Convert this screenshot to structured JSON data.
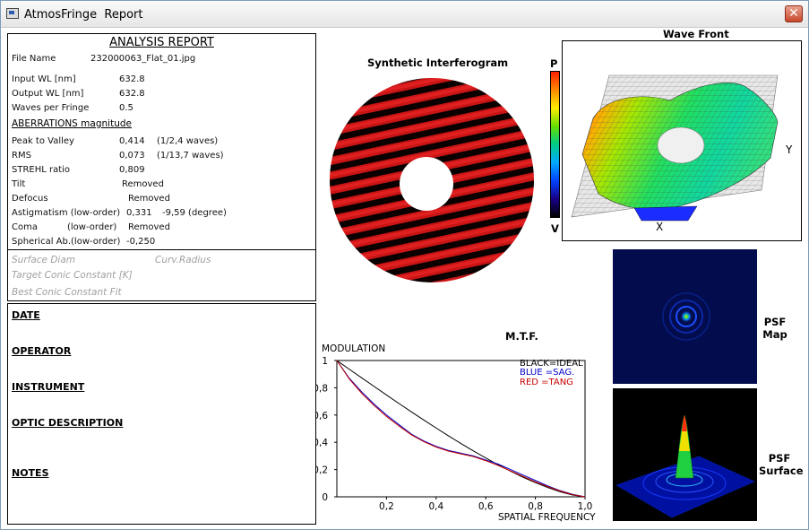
{
  "window": {
    "app_name": "AtmosFringe",
    "title": "Report",
    "close_label": "✕"
  },
  "report": {
    "heading": "ANALYSIS  REPORT",
    "file_name_label": "File Name",
    "file_name": "232000063_Flat_01.jpg",
    "input_wl_label": "Input  WL [nm]",
    "input_wl": "632.8",
    "output_wl_label": "Output WL [nm]",
    "output_wl": "632.8",
    "waves_per_fringe_label": "Waves per Fringe",
    "waves_per_fringe": "0.5",
    "aberrations_heading": "ABERRATIONS magnitude",
    "pv_label": "Peak to Valley",
    "pv_value": "0,414",
    "pv_waves": "(1/2,4 waves)",
    "rms_label": "RMS",
    "rms_value": "0,073",
    "rms_waves": "(1/13,7 waves)",
    "strehl_label": "STREHL ratio",
    "strehl_value": "0,809",
    "tilt_label": "Tilt",
    "tilt_value": "Removed",
    "defocus_label": "Defocus",
    "defocus_value": "Removed",
    "astig_label": "Astigmatism  (low-order)",
    "astig_value": "0,331",
    "astig_angle": "-9,59  (degree)",
    "coma_label": "Coma",
    "coma_order": "(low-order)",
    "coma_value": "Removed",
    "spherical_label": "Spherical Ab.(low-order)",
    "spherical_value": "-0,250",
    "surface_diam": "Surface Diam",
    "curv_radius": "Curv.Radius",
    "target_conic": "Target Conic Constant [K]",
    "best_conic": "Best Conic Constant Fit"
  },
  "info": {
    "date": "DATE",
    "operator": "OPERATOR",
    "instrument": "INSTRUMENT",
    "optic_description": "OPTIC DESCRIPTION",
    "notes": "NOTES"
  },
  "interferogram": {
    "title": "Synthetic Interferogram",
    "colors": {
      "fringe_dark": "#000000",
      "fringe_red": "#c81414"
    }
  },
  "colorbar": {
    "top_label": "P",
    "bottom_label": "V"
  },
  "wavefront": {
    "title": "Wave Front",
    "y_label": "Y",
    "x_label": "X"
  },
  "psf": {
    "map_label_1": "PSF",
    "map_label_2": "Map",
    "surface_label_1": "PSF",
    "surface_label_2": "Surface"
  },
  "chart_data": {
    "type": "line",
    "title": "M.T.F.",
    "ylabel": "MODULATION",
    "xlabel": "SPATIAL FREQUENCY",
    "xlim": [
      0,
      1
    ],
    "ylim": [
      0,
      1
    ],
    "x_ticks": [
      "0,2",
      "0,4",
      "0,6",
      "0,8",
      "1,0"
    ],
    "y_ticks": [
      "0",
      "0,2",
      "0,4",
      "0,6",
      "0,8",
      "1"
    ],
    "legend": [
      "BLACK=IDEAL",
      "BLUE  =SAG.",
      "RED   =TANG"
    ],
    "legend_colors": [
      "#000000",
      "#0000c8",
      "#c80000"
    ],
    "x": [
      0,
      0.05,
      0.1,
      0.15,
      0.2,
      0.25,
      0.3,
      0.35,
      0.4,
      0.45,
      0.5,
      0.55,
      0.6,
      0.65,
      0.7,
      0.75,
      0.8,
      0.85,
      0.9,
      0.95,
      1.0
    ],
    "series": [
      {
        "name": "IDEAL",
        "color": "#000000",
        "values": [
          1.0,
          0.936,
          0.873,
          0.81,
          0.747,
          0.685,
          0.624,
          0.564,
          0.505,
          0.447,
          0.391,
          0.337,
          0.285,
          0.235,
          0.188,
          0.144,
          0.104,
          0.068,
          0.037,
          0.013,
          0.0
        ]
      },
      {
        "name": "SAG.",
        "color": "#0000c8",
        "values": [
          1.0,
          0.87,
          0.77,
          0.68,
          0.6,
          0.53,
          0.46,
          0.41,
          0.37,
          0.34,
          0.32,
          0.3,
          0.27,
          0.24,
          0.2,
          0.16,
          0.12,
          0.08,
          0.045,
          0.018,
          0.0
        ]
      },
      {
        "name": "TANG",
        "color": "#c80000",
        "values": [
          1.0,
          0.865,
          0.76,
          0.67,
          0.59,
          0.52,
          0.455,
          0.405,
          0.365,
          0.335,
          0.315,
          0.295,
          0.265,
          0.23,
          0.19,
          0.15,
          0.11,
          0.075,
          0.042,
          0.016,
          0.0
        ]
      }
    ]
  }
}
